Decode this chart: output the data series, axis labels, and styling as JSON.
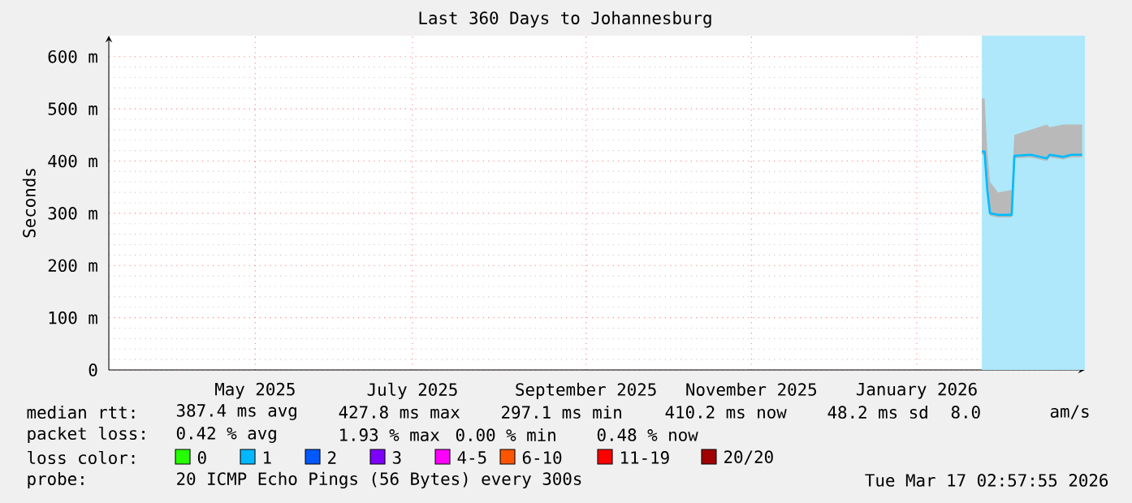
{
  "chart_data": {
    "type": "line",
    "title": "Last 360 Days to Johannesburg",
    "ylabel": "Seconds",
    "xlim": [
      "2025-03-22",
      "2026-03-17"
    ],
    "xticks": [
      {
        "value": "2025-05-15",
        "label": "May 2025"
      },
      {
        "value": "2025-07-12",
        "label": "July 2025"
      },
      {
        "value": "2025-09-14",
        "label": "September 2025"
      },
      {
        "value": "2025-11-14",
        "label": "November 2025"
      },
      {
        "value": "2026-01-14",
        "label": "January 2026"
      }
    ],
    "ylim": [
      0,
      640
    ],
    "yticks": [
      0,
      {
        "value": 100,
        "label": "100 m"
      },
      {
        "value": 200,
        "label": "200 m"
      },
      {
        "value": 300,
        "label": "300 m"
      },
      {
        "value": 400,
        "label": "400 m"
      },
      {
        "value": 500,
        "label": "500 m"
      },
      {
        "value": 600,
        "label": "600 m"
      }
    ],
    "grid": true,
    "legend": "bottom",
    "legend_title": "loss color:",
    "series": [
      {
        "color": "#00bbff",
        "x": [
          "2026-02-07",
          "2026-02-08",
          "2026-02-09",
          "2026-02-10",
          "2026-02-13",
          "2026-02-18",
          "2026-02-19",
          "2026-02-25",
          "2026-03-03",
          "2026-03-04",
          "2026-03-09",
          "2026-03-12",
          "2026-03-16"
        ],
        "values": [
          418,
          418,
          345,
          300,
          297,
          297,
          410,
          412,
          405,
          412,
          408,
          412,
          412
        ],
        "lower": [
          412,
          412,
          340,
          295,
          292,
          292,
          405,
          407,
          400,
          407,
          403,
          407,
          407
        ],
        "upper": [
          520,
          520,
          420,
          360,
          340,
          345,
          450,
          460,
          470,
          465,
          470,
          470,
          470
        ]
      },
      {
        "name": "0",
        "color": "#26ff00"
      },
      {
        "name": "1",
        "color": "#00b8ff"
      },
      {
        "name": "2",
        "color": "#0059ff"
      },
      {
        "name": "3",
        "color": "#7e00ff"
      },
      {
        "name": "4-5",
        "color": "#ff00ff"
      },
      {
        "name": "6-10",
        "color": "#ff5500"
      },
      {
        "name": "11-19",
        "color": "#ff0000"
      },
      {
        "name": "20/20",
        "color": "#a10000"
      }
    ],
    "bands": [
      {
        "axis": "x",
        "from": "2026-02-07",
        "to": "2026-03-17",
        "color": "#aee8fa"
      }
    ],
    "annotations": [
      "median rtt:",
      "387.4 ms avg",
      "427.8 ms max",
      "297.1 ms min",
      "410.2 ms now",
      "48.2 ms sd",
      "8.0",
      "am/s",
      "packet loss:",
      "0.42 % avg",
      "1.93 % max",
      "0.00 % min",
      "0.48 % now",
      "probe:",
      "20 ICMP Echo Pings (56 Bytes) every 300s",
      "Tue Mar 17 02:57:55 2026"
    ]
  }
}
